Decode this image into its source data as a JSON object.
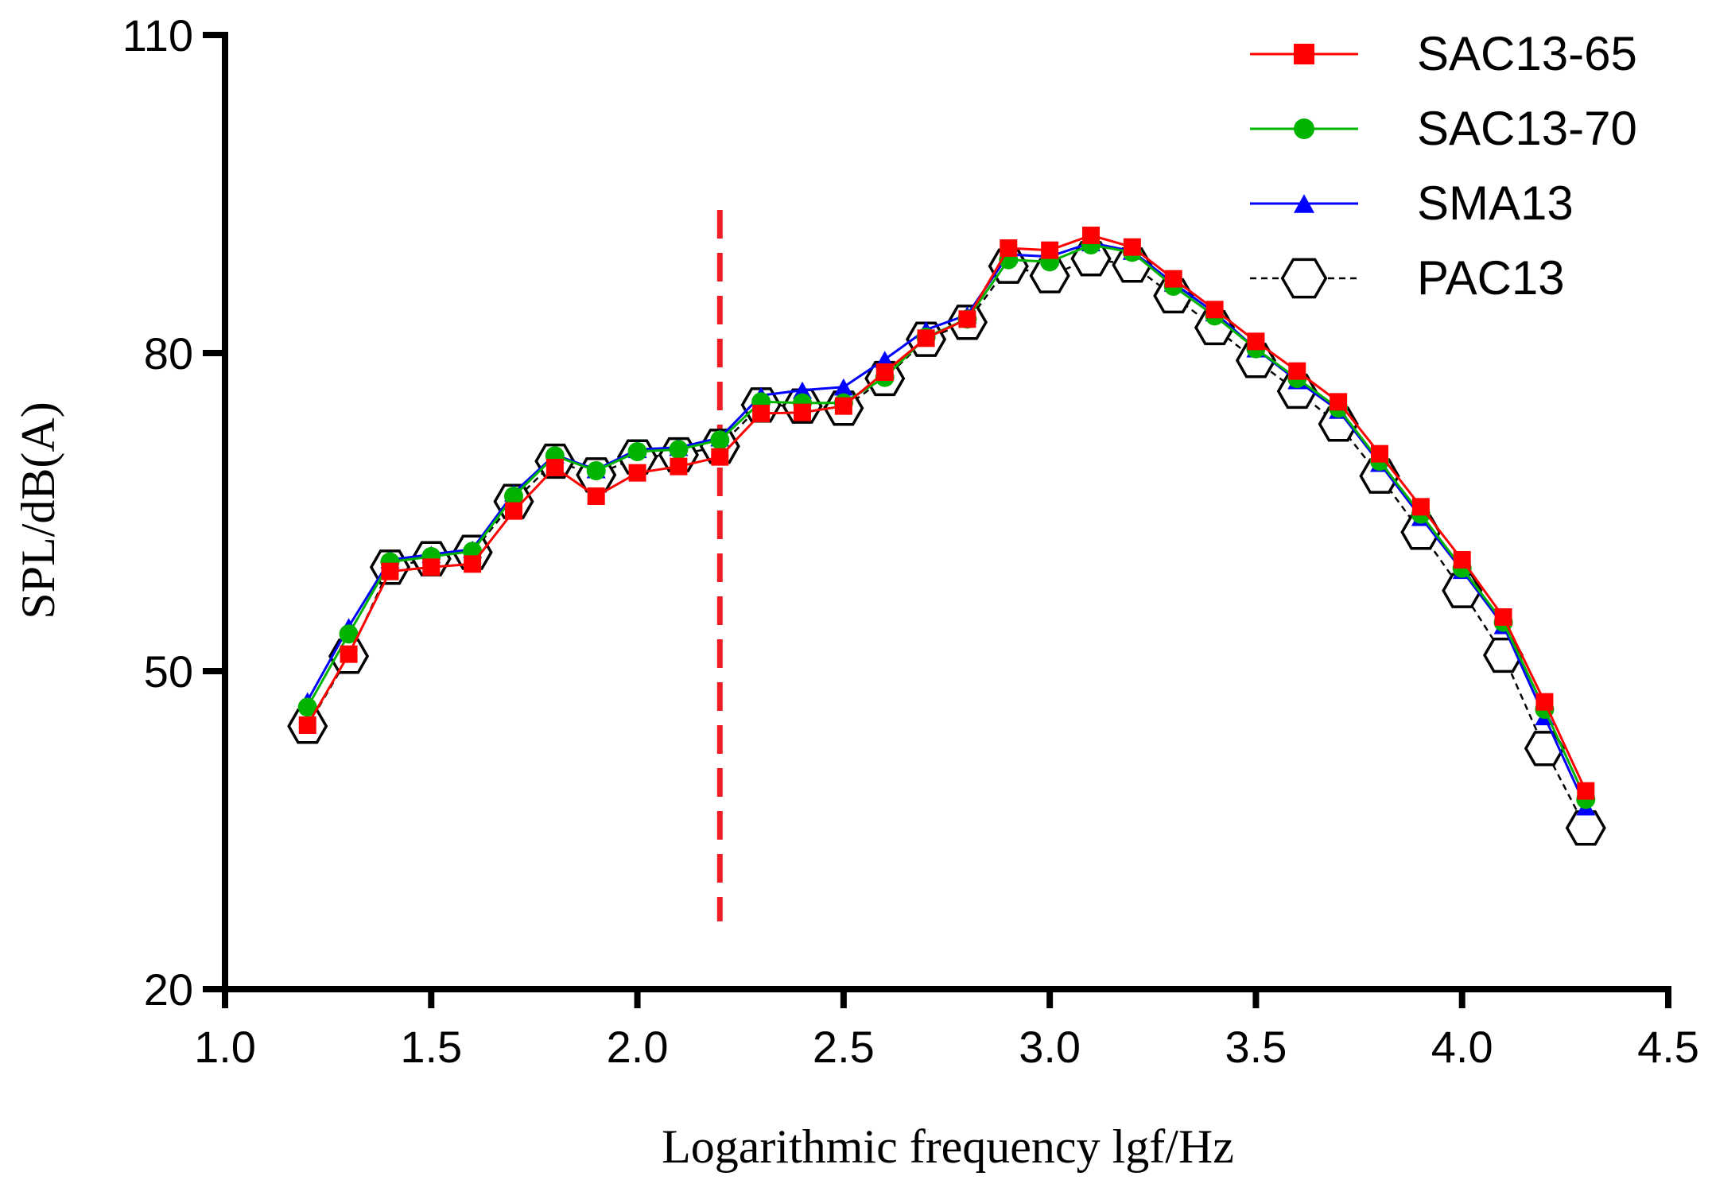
{
  "chart_data": {
    "type": "line",
    "title": "",
    "xlabel": "Logarithmic frequency lgf/Hz",
    "ylabel": "SPL/dB(A)",
    "xlim": [
      1.0,
      4.5
    ],
    "ylim": [
      20,
      110
    ],
    "xticks": [
      "1.0",
      "1.5",
      "2.0",
      "2.5",
      "3.0",
      "3.5",
      "4.0",
      "4.5"
    ],
    "yticks": [
      "20",
      "50",
      "80",
      "110"
    ],
    "legend_position": "top-right",
    "x": [
      1.2,
      1.3,
      1.4,
      1.5,
      1.6,
      1.7,
      1.8,
      1.9,
      2.0,
      2.1,
      2.2,
      2.3,
      2.4,
      2.5,
      2.6,
      2.7,
      2.8,
      2.9,
      3.0,
      3.1,
      3.2,
      3.3,
      3.4,
      3.5,
      3.6,
      3.7,
      3.8,
      3.9,
      4.0,
      4.1,
      4.2,
      4.3
    ],
    "reference_line": {
      "x": 2.2,
      "y_range": [
        26.4,
        93.5
      ],
      "color": "#ee1c24",
      "style": "dashed"
    },
    "series": [
      {
        "name": "SAC13-65",
        "color": "#ff0000",
        "marker": "square",
        "line_style": "solid",
        "values": [
          44.9,
          51.6,
          59.4,
          59.8,
          60.1,
          65.1,
          69.2,
          66.5,
          68.7,
          69.3,
          70.2,
          74.3,
          74.4,
          75.0,
          78.2,
          81.4,
          83.2,
          89.9,
          89.7,
          91.1,
          90.0,
          87.0,
          84.1,
          81.1,
          78.3,
          75.4,
          70.5,
          65.5,
          60.5,
          55.1,
          47.1,
          38.7
        ]
      },
      {
        "name": "SAC13-70",
        "color": "#00b400",
        "marker": "circle",
        "line_style": "solid",
        "values": [
          46.6,
          53.5,
          60.3,
          60.8,
          61.3,
          66.5,
          70.3,
          68.9,
          70.7,
          70.9,
          71.8,
          75.4,
          75.3,
          75.3,
          77.7,
          81.5,
          83.2,
          88.8,
          88.6,
          90.2,
          89.5,
          86.3,
          83.5,
          80.4,
          77.6,
          74.8,
          69.8,
          64.8,
          59.7,
          54.6,
          46.4,
          37.9
        ]
      },
      {
        "name": "SMA13",
        "color": "#0000ff",
        "marker": "triangle",
        "line_style": "solid",
        "values": [
          47.2,
          54.2,
          60.5,
          61.0,
          61.5,
          66.8,
          70.4,
          69.0,
          70.9,
          71.1,
          72.0,
          76.0,
          76.5,
          76.8,
          79.4,
          82.2,
          83.6,
          89.3,
          89.1,
          90.4,
          89.6,
          86.6,
          83.8,
          80.4,
          77.4,
          74.6,
          69.6,
          64.5,
          59.5,
          54.3,
          45.7,
          37.2
        ]
      },
      {
        "name": "PAC13",
        "color": "#000000",
        "marker": "hexagon-open",
        "line_style": "dashed",
        "values": [
          44.8,
          51.4,
          59.8,
          60.6,
          61.2,
          66.0,
          69.8,
          68.5,
          70.2,
          70.4,
          71.2,
          75.1,
          75.0,
          74.8,
          77.6,
          81.3,
          82.9,
          88.2,
          87.3,
          88.9,
          88.3,
          85.4,
          82.4,
          79.3,
          76.4,
          73.3,
          68.4,
          63.1,
          57.6,
          51.5,
          42.7,
          35.2
        ]
      }
    ]
  }
}
